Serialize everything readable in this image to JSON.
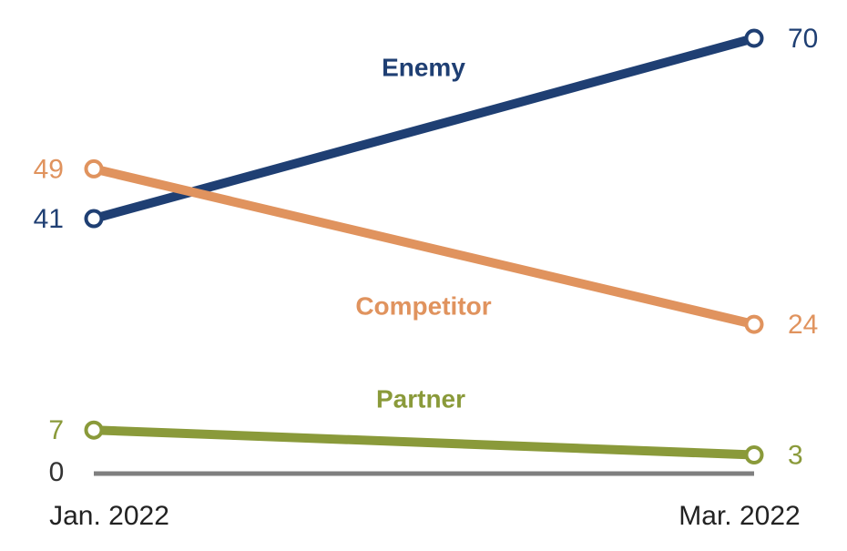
{
  "chart_data": {
    "type": "line",
    "categories": [
      "Jan. 2022",
      "Mar. 2022"
    ],
    "series": [
      {
        "name": "Enemy",
        "color": "#1f3f73",
        "values": [
          41,
          70
        ]
      },
      {
        "name": "Competitor",
        "color": "#e0935e",
        "values": [
          49,
          24
        ]
      },
      {
        "name": "Partner",
        "color": "#8a9a3a",
        "values": [
          7,
          3
        ]
      }
    ],
    "ylim": [
      0,
      70
    ],
    "yticks": [
      0
    ],
    "axis_color": "#7f7f7f"
  }
}
